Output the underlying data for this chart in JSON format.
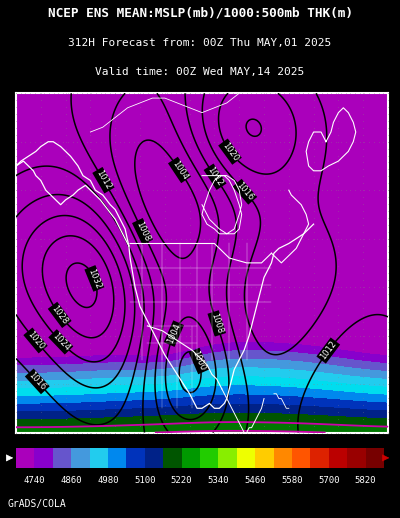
{
  "title_line1": "NCEP ENS MEAN:MSLP(mb)/1000:500mb THK(m)",
  "title_line2": "312H Forecast from: 00Z Thu MAY,01 2025",
  "title_line3": "Valid time: 00Z Wed MAY,14 2025",
  "footer": "GrADS/COLA",
  "colorbar_values": [
    4740,
    4860,
    4980,
    5100,
    5220,
    5340,
    5460,
    5580,
    5700,
    5820
  ],
  "colorbar_colors": [
    "#AA00AA",
    "#9900BB",
    "#7766BB",
    "#6699CC",
    "#33BBDD",
    "#00DDDD",
    "#0088FF",
    "#0000AA",
    "#006600",
    "#008800",
    "#22AA00",
    "#44DD00",
    "#AAEE00",
    "#FFFF00",
    "#FFCC00",
    "#FF8800",
    "#FF5500",
    "#DD2200",
    "#BB0000",
    "#880000"
  ],
  "bg_color": "#000000",
  "title_color": "#FFFFFF",
  "border_color": "#FFFFFF",
  "map_xlim": [
    -170,
    -20
  ],
  "map_ylim": [
    10,
    80
  ],
  "thk_base_eq": 5820,
  "thk_pole_gradient": 38,
  "mslp_base": 1013
}
